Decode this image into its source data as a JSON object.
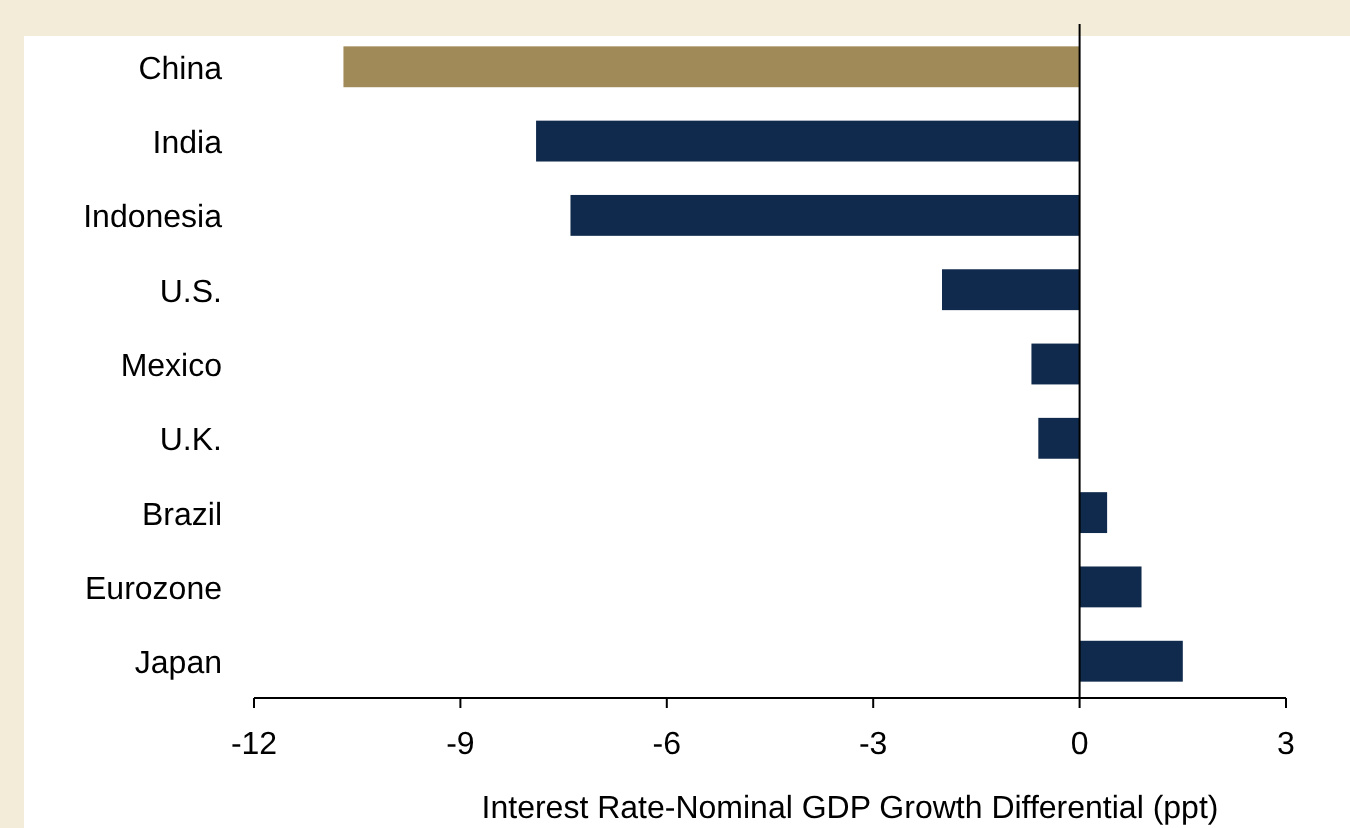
{
  "chart_data": {
    "type": "bar",
    "orientation": "horizontal",
    "xlabel": "Interest Rate-Nominal GDP Growth Differential (ppt)",
    "categories": [
      "China",
      "India",
      "Indonesia",
      "U.S.",
      "Mexico",
      "U.K.",
      "Brazil",
      "Eurozone",
      "Japan"
    ],
    "values": [
      -10.7,
      -7.9,
      -7.4,
      -2.0,
      -0.7,
      -0.6,
      0.4,
      0.9,
      1.5
    ],
    "colors": [
      "#a08a58",
      "#0f2a4c",
      "#0f2a4c",
      "#0f2a4c",
      "#0f2a4c",
      "#0f2a4c",
      "#0f2a4c",
      "#0f2a4c",
      "#0f2a4c"
    ],
    "xlim": [
      -12,
      3
    ],
    "xticks": [
      -12,
      -9,
      -6,
      -3,
      0,
      3
    ]
  }
}
